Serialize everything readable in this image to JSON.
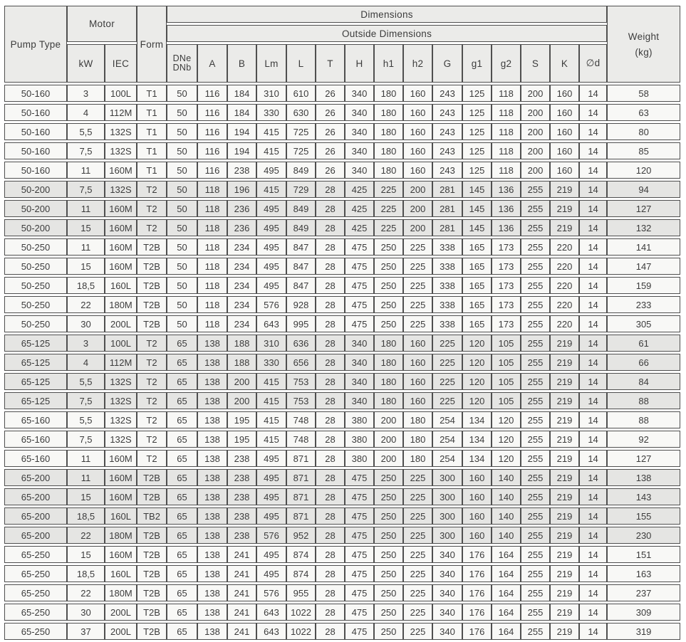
{
  "meta": {
    "description": "Pump dimensions and weight specification table",
    "colors": {
      "border": "#4f4f4f",
      "header_bg": "#ebebe9",
      "row_bg": "#f8f8f6",
      "row_shaded_bg": "#e5e5e3",
      "text": "#3c3c3c",
      "page_bg": "#ffffff"
    }
  },
  "table": {
    "header": {
      "pump_type": "Pump Type",
      "motor": "Motor",
      "kw": "kW",
      "iec": "IEC",
      "form": "Form",
      "dimensions": "Dimensions",
      "outside_dimensions": "Outside Dimensions",
      "dn_line1": "DNe",
      "dn_line2": "DNb",
      "dim_cols": [
        "A",
        "B",
        "Lm",
        "L",
        "T",
        "H",
        "h1",
        "h2",
        "G",
        "g1",
        "g2",
        "S",
        "K",
        "∅d"
      ],
      "weight_line1": "Weight",
      "weight_line2": "(kg)"
    },
    "rows": [
      {
        "shaded": false,
        "cells": [
          "50-160",
          "3",
          "100L",
          "T1",
          "50",
          "116",
          "184",
          "310",
          "610",
          "26",
          "340",
          "180",
          "160",
          "243",
          "125",
          "118",
          "200",
          "160",
          "14",
          "58"
        ]
      },
      {
        "shaded": false,
        "cells": [
          "50-160",
          "4",
          "112M",
          "T1",
          "50",
          "116",
          "184",
          "330",
          "630",
          "26",
          "340",
          "180",
          "160",
          "243",
          "125",
          "118",
          "200",
          "160",
          "14",
          "63"
        ]
      },
      {
        "shaded": false,
        "cells": [
          "50-160",
          "5,5",
          "132S",
          "T1",
          "50",
          "116",
          "194",
          "415",
          "725",
          "26",
          "340",
          "180",
          "160",
          "243",
          "125",
          "118",
          "200",
          "160",
          "14",
          "80"
        ]
      },
      {
        "shaded": false,
        "cells": [
          "50-160",
          "7,5",
          "132S",
          "T1",
          "50",
          "116",
          "194",
          "415",
          "725",
          "26",
          "340",
          "180",
          "160",
          "243",
          "125",
          "118",
          "200",
          "160",
          "14",
          "85"
        ]
      },
      {
        "shaded": false,
        "cells": [
          "50-160",
          "11",
          "160M",
          "T1",
          "50",
          "116",
          "238",
          "495",
          "849",
          "26",
          "340",
          "180",
          "160",
          "243",
          "125",
          "118",
          "200",
          "160",
          "14",
          "120"
        ]
      },
      {
        "shaded": true,
        "cells": [
          "50-200",
          "7,5",
          "132S",
          "T2",
          "50",
          "118",
          "196",
          "415",
          "729",
          "28",
          "425",
          "225",
          "200",
          "281",
          "145",
          "136",
          "255",
          "219",
          "14",
          "94"
        ]
      },
      {
        "shaded": true,
        "cells": [
          "50-200",
          "11",
          "160M",
          "T2",
          "50",
          "118",
          "236",
          "495",
          "849",
          "28",
          "425",
          "225",
          "200",
          "281",
          "145",
          "136",
          "255",
          "219",
          "14",
          "127"
        ]
      },
      {
        "shaded": true,
        "cells": [
          "50-200",
          "15",
          "160M",
          "T2",
          "50",
          "118",
          "236",
          "495",
          "849",
          "28",
          "425",
          "225",
          "200",
          "281",
          "145",
          "136",
          "255",
          "219",
          "14",
          "132"
        ]
      },
      {
        "shaded": false,
        "cells": [
          "50-250",
          "11",
          "160M",
          "T2B",
          "50",
          "118",
          "234",
          "495",
          "847",
          "28",
          "475",
          "250",
          "225",
          "338",
          "165",
          "173",
          "255",
          "220",
          "14",
          "141"
        ]
      },
      {
        "shaded": false,
        "cells": [
          "50-250",
          "15",
          "160M",
          "T2B",
          "50",
          "118",
          "234",
          "495",
          "847",
          "28",
          "475",
          "250",
          "225",
          "338",
          "165",
          "173",
          "255",
          "220",
          "14",
          "147"
        ]
      },
      {
        "shaded": false,
        "cells": [
          "50-250",
          "18,5",
          "160L",
          "T2B",
          "50",
          "118",
          "234",
          "495",
          "847",
          "28",
          "475",
          "250",
          "225",
          "338",
          "165",
          "173",
          "255",
          "220",
          "14",
          "159"
        ]
      },
      {
        "shaded": false,
        "cells": [
          "50-250",
          "22",
          "180M",
          "T2B",
          "50",
          "118",
          "234",
          "576",
          "928",
          "28",
          "475",
          "250",
          "225",
          "338",
          "165",
          "173",
          "255",
          "220",
          "14",
          "233"
        ]
      },
      {
        "shaded": false,
        "cells": [
          "50-250",
          "30",
          "200L",
          "T2B",
          "50",
          "118",
          "234",
          "643",
          "995",
          "28",
          "475",
          "250",
          "225",
          "338",
          "165",
          "173",
          "255",
          "220",
          "14",
          "305"
        ]
      },
      {
        "shaded": true,
        "cells": [
          "65-125",
          "3",
          "100L",
          "T2",
          "65",
          "138",
          "188",
          "310",
          "636",
          "28",
          "340",
          "180",
          "160",
          "225",
          "120",
          "105",
          "255",
          "219",
          "14",
          "61"
        ]
      },
      {
        "shaded": true,
        "cells": [
          "65-125",
          "4",
          "112M",
          "T2",
          "65",
          "138",
          "188",
          "330",
          "656",
          "28",
          "340",
          "180",
          "160",
          "225",
          "120",
          "105",
          "255",
          "219",
          "14",
          "66"
        ]
      },
      {
        "shaded": true,
        "cells": [
          "65-125",
          "5,5",
          "132S",
          "T2",
          "65",
          "138",
          "200",
          "415",
          "753",
          "28",
          "340",
          "180",
          "160",
          "225",
          "120",
          "105",
          "255",
          "219",
          "14",
          "84"
        ]
      },
      {
        "shaded": true,
        "cells": [
          "65-125",
          "7,5",
          "132S",
          "T2",
          "65",
          "138",
          "200",
          "415",
          "753",
          "28",
          "340",
          "180",
          "160",
          "225",
          "120",
          "105",
          "255",
          "219",
          "14",
          "88"
        ]
      },
      {
        "shaded": false,
        "cells": [
          "65-160",
          "5,5",
          "132S",
          "T2",
          "65",
          "138",
          "195",
          "415",
          "748",
          "28",
          "380",
          "200",
          "180",
          "254",
          "134",
          "120",
          "255",
          "219",
          "14",
          "88"
        ]
      },
      {
        "shaded": false,
        "cells": [
          "65-160",
          "7,5",
          "132S",
          "T2",
          "65",
          "138",
          "195",
          "415",
          "748",
          "28",
          "380",
          "200",
          "180",
          "254",
          "134",
          "120",
          "255",
          "219",
          "14",
          "92"
        ]
      },
      {
        "shaded": false,
        "cells": [
          "65-160",
          "11",
          "160M",
          "T2",
          "65",
          "138",
          "238",
          "495",
          "871",
          "28",
          "380",
          "200",
          "180",
          "254",
          "134",
          "120",
          "255",
          "219",
          "14",
          "127"
        ]
      },
      {
        "shaded": true,
        "cells": [
          "65-200",
          "11",
          "160M",
          "T2B",
          "65",
          "138",
          "238",
          "495",
          "871",
          "28",
          "475",
          "250",
          "225",
          "300",
          "160",
          "140",
          "255",
          "219",
          "14",
          "138"
        ]
      },
      {
        "shaded": true,
        "cells": [
          "65-200",
          "15",
          "160M",
          "T2B",
          "65",
          "138",
          "238",
          "495",
          "871",
          "28",
          "475",
          "250",
          "225",
          "300",
          "160",
          "140",
          "255",
          "219",
          "14",
          "143"
        ]
      },
      {
        "shaded": true,
        "cells": [
          "65-200",
          "18,5",
          "160L",
          "TB2",
          "65",
          "138",
          "238",
          "495",
          "871",
          "28",
          "475",
          "250",
          "225",
          "300",
          "160",
          "140",
          "255",
          "219",
          "14",
          "155"
        ]
      },
      {
        "shaded": true,
        "cells": [
          "65-200",
          "22",
          "180M",
          "T2B",
          "65",
          "138",
          "238",
          "576",
          "952",
          "28",
          "475",
          "250",
          "225",
          "300",
          "160",
          "140",
          "255",
          "219",
          "14",
          "230"
        ]
      },
      {
        "shaded": false,
        "cells": [
          "65-250",
          "15",
          "160M",
          "T2B",
          "65",
          "138",
          "241",
          "495",
          "874",
          "28",
          "475",
          "250",
          "225",
          "340",
          "176",
          "164",
          "255",
          "219",
          "14",
          "151"
        ]
      },
      {
        "shaded": false,
        "cells": [
          "65-250",
          "18,5",
          "160L",
          "T2B",
          "65",
          "138",
          "241",
          "495",
          "874",
          "28",
          "475",
          "250",
          "225",
          "340",
          "176",
          "164",
          "255",
          "219",
          "14",
          "163"
        ]
      },
      {
        "shaded": false,
        "cells": [
          "65-250",
          "22",
          "180M",
          "T2B",
          "65",
          "138",
          "241",
          "576",
          "955",
          "28",
          "475",
          "250",
          "225",
          "340",
          "176",
          "164",
          "255",
          "219",
          "14",
          "237"
        ]
      },
      {
        "shaded": false,
        "cells": [
          "65-250",
          "30",
          "200L",
          "T2B",
          "65",
          "138",
          "241",
          "643",
          "1022",
          "28",
          "475",
          "250",
          "225",
          "340",
          "176",
          "164",
          "255",
          "219",
          "14",
          "309"
        ]
      },
      {
        "shaded": false,
        "cells": [
          "65-250",
          "37",
          "200L",
          "T2B",
          "65",
          "138",
          "241",
          "643",
          "1022",
          "28",
          "475",
          "250",
          "225",
          "340",
          "176",
          "164",
          "255",
          "219",
          "14",
          "319"
        ]
      }
    ]
  }
}
